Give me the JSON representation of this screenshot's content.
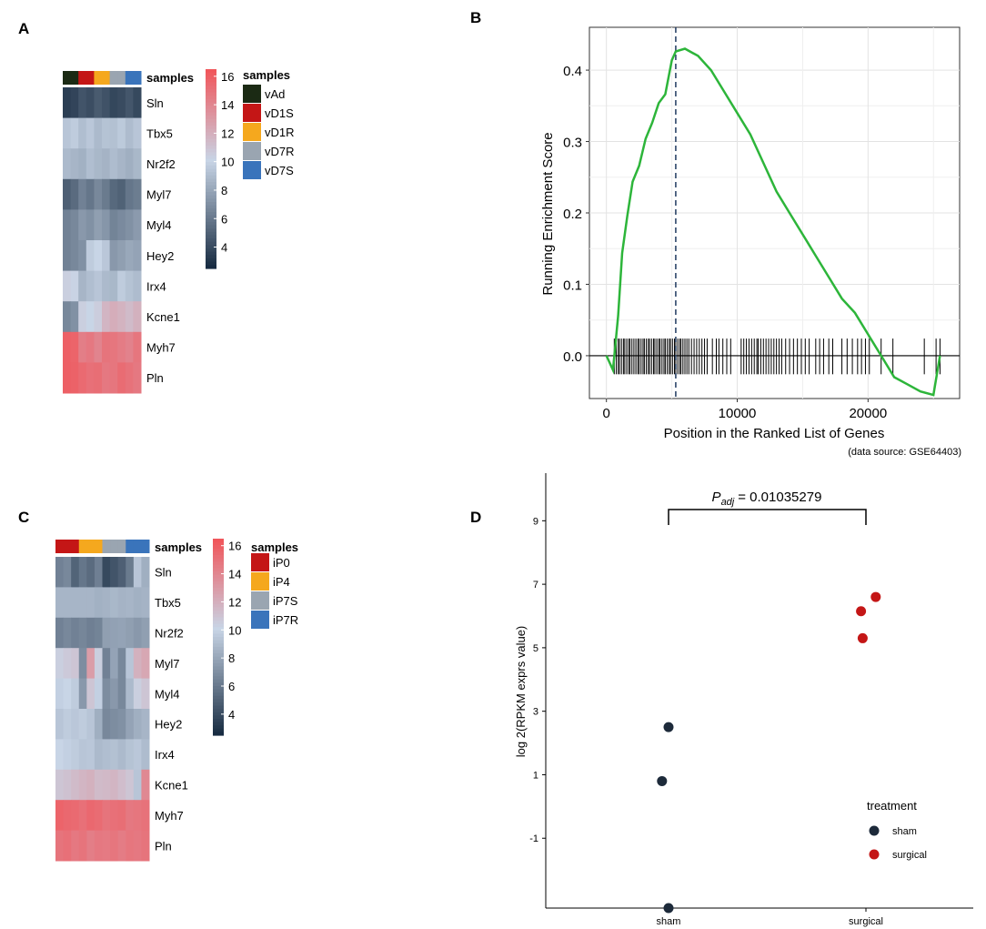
{
  "panels": {
    "A": {
      "label": "A",
      "type": "heatmap",
      "annotation_title": "samples",
      "legend_title": "samples",
      "genes": [
        "Sln",
        "Tbx5",
        "Nr2f2",
        "Myl7",
        "Myl4",
        "Hey2",
        "Irx4",
        "Kcne1",
        "Myh7",
        "Pln"
      ],
      "samples": [
        {
          "name": "vAd",
          "color": "#1b2a14"
        },
        {
          "name": "vD1S",
          "color": "#c41616"
        },
        {
          "name": "vD1R",
          "color": "#f5a81e"
        },
        {
          "name": "vD7R",
          "color": "#9aa5b1"
        },
        {
          "name": "vD7S",
          "color": "#3a74bb"
        }
      ],
      "column_groups": [
        "vAd",
        "vAd",
        "vD1S",
        "vD1S",
        "vD1R",
        "vD1R",
        "vD7R",
        "vD7R",
        "vD7S",
        "vD7S"
      ],
      "values": [
        [
          3.5,
          3.8,
          4.5,
          4.2,
          4.8,
          4.4,
          3.9,
          4.1,
          4.6,
          4.0
        ],
        [
          9.5,
          9.8,
          9.2,
          9.6,
          9.0,
          9.4,
          9.3,
          9.7,
          9.1,
          9.5
        ],
        [
          9.0,
          8.8,
          8.6,
          9.2,
          8.9,
          8.7,
          9.1,
          8.8,
          8.5,
          8.9
        ],
        [
          5.0,
          5.5,
          6.5,
          6.0,
          6.8,
          6.2,
          5.4,
          5.1,
          6.0,
          6.3
        ],
        [
          6.5,
          6.8,
          7.5,
          7.2,
          7.8,
          7.4,
          6.6,
          6.9,
          7.2,
          7.6
        ],
        [
          6.5,
          6.8,
          7.2,
          9.8,
          10.2,
          9.6,
          7.5,
          7.8,
          8.2,
          8.0
        ],
        [
          10.5,
          10.3,
          8.8,
          9.2,
          9.5,
          9.0,
          8.9,
          9.8,
          9.4,
          9.1
        ],
        [
          6.8,
          7.2,
          10.5,
          10.2,
          10.6,
          11.8,
          12.2,
          11.9,
          11.5,
          12.0
        ],
        [
          16.0,
          15.8,
          14.5,
          14.8,
          14.2,
          15.0,
          14.9,
          14.6,
          14.3,
          14.9
        ],
        [
          16.0,
          15.9,
          15.5,
          15.2,
          15.3,
          14.8,
          14.9,
          15.4,
          15.1,
          14.8
        ]
      ],
      "scale_ticks": [
        4,
        6,
        8,
        10,
        12,
        14,
        16
      ],
      "scale_range": [
        2.5,
        16.5
      ]
    },
    "B": {
      "label": "B",
      "type": "gsea-line",
      "ylabel": "Running Enrichment Score",
      "xlabel": "Position in the Ranked List of Genes",
      "source": "(data source: GSE64403)",
      "x_ticks": [
        0,
        10000,
        20000
      ],
      "y_ticks": [
        "0.0",
        "0.1",
        "0.2",
        "0.3",
        "0.4"
      ],
      "ylim": [
        -0.06,
        0.46
      ],
      "xlim": [
        -1300,
        27000
      ],
      "peak_position": 5300,
      "line_color": "#2db53a",
      "curve": [
        [
          0,
          0.0
        ],
        [
          500,
          -0.02
        ],
        [
          900,
          0.06
        ],
        [
          1200,
          0.14
        ],
        [
          1600,
          0.2
        ],
        [
          2000,
          0.24
        ],
        [
          2500,
          0.27
        ],
        [
          3000,
          0.3
        ],
        [
          3500,
          0.33
        ],
        [
          4000,
          0.35
        ],
        [
          4500,
          0.37
        ],
        [
          5000,
          0.41
        ],
        [
          5300,
          0.43
        ],
        [
          6000,
          0.43
        ],
        [
          6500,
          0.425
        ],
        [
          7000,
          0.42
        ],
        [
          8000,
          0.4
        ],
        [
          9000,
          0.37
        ],
        [
          10000,
          0.34
        ],
        [
          11000,
          0.31
        ],
        [
          12000,
          0.27
        ],
        [
          13000,
          0.23
        ],
        [
          14000,
          0.2
        ],
        [
          15000,
          0.17
        ],
        [
          16000,
          0.14
        ],
        [
          17000,
          0.11
        ],
        [
          18000,
          0.08
        ],
        [
          19000,
          0.06
        ],
        [
          20000,
          0.03
        ],
        [
          21000,
          0.0
        ],
        [
          22000,
          -0.03
        ],
        [
          23000,
          -0.04
        ],
        [
          24000,
          -0.05
        ],
        [
          25000,
          -0.055
        ],
        [
          25500,
          0.0
        ]
      ],
      "hits": [
        600,
        750,
        900,
        1000,
        1150,
        1300,
        1400,
        1550,
        1700,
        1800,
        1950,
        2100,
        2250,
        2400,
        2500,
        2650,
        2800,
        2900,
        3050,
        3200,
        3300,
        3450,
        3600,
        3700,
        3850,
        4000,
        4100,
        4250,
        4400,
        4500,
        4650,
        4800,
        4900,
        5050,
        5200,
        5300,
        5450,
        5600,
        5700,
        5850,
        6000,
        6150,
        6300,
        6500,
        6700,
        6900,
        7100,
        7300,
        7500,
        7700,
        8100,
        8400,
        8600,
        8900,
        9200,
        9500,
        10300,
        10500,
        10700,
        10900,
        11100,
        11300,
        11500,
        11600,
        11800,
        12000,
        12200,
        12400,
        12600,
        12800,
        13000,
        13200,
        13400,
        13700,
        14000,
        14300,
        14600,
        14900,
        15200,
        15500,
        16000,
        16300,
        16600,
        17000,
        17300,
        18000,
        18400,
        18800,
        19200,
        19500,
        19800,
        20100,
        21000,
        21900,
        24300,
        25200,
        25500
      ]
    },
    "C": {
      "label": "C",
      "type": "heatmap",
      "annotation_title": "samples",
      "legend_title": "samples",
      "genes": [
        "Sln",
        "Tbx5",
        "Nr2f2",
        "Myl7",
        "Myl4",
        "Hey2",
        "Irx4",
        "Kcne1",
        "Myh7",
        "Pln"
      ],
      "samples": [
        {
          "name": "iP0",
          "color": "#c41616"
        },
        {
          "name": "iP4",
          "color": "#f5a81e"
        },
        {
          "name": "iP7S",
          "color": "#9aa5b1"
        },
        {
          "name": "iP7R",
          "color": "#3a74bb"
        }
      ],
      "column_groups": [
        "iP0",
        "iP0",
        "iP0",
        "iP4",
        "iP4",
        "iP4",
        "iP7S",
        "iP7S",
        "iP7S",
        "iP7R",
        "iP7R",
        "iP7R"
      ],
      "values": [
        [
          6.5,
          6.8,
          5.2,
          6.0,
          5.5,
          6.4,
          4.0,
          4.5,
          5.0,
          6.2,
          9.5,
          8.5
        ],
        [
          8.8,
          8.8,
          8.8,
          8.8,
          8.8,
          8.6,
          8.7,
          8.9,
          8.7,
          8.8,
          8.6,
          8.7
        ],
        [
          6.5,
          6.8,
          6.5,
          6.7,
          6.4,
          6.6,
          7.8,
          7.9,
          8.0,
          7.8,
          7.5,
          7.8
        ],
        [
          10.5,
          10.8,
          11.0,
          7.0,
          13.0,
          10.5,
          6.5,
          8.0,
          6.8,
          9.5,
          12.0,
          12.5
        ],
        [
          10.0,
          10.2,
          9.8,
          7.5,
          11.0,
          10.0,
          7.0,
          7.5,
          6.8,
          9.0,
          10.5,
          11.0
        ],
        [
          9.5,
          9.8,
          9.6,
          9.8,
          9.5,
          8.5,
          6.8,
          7.0,
          7.2,
          8.0,
          8.5,
          8.8
        ],
        [
          10.2,
          10.0,
          9.8,
          9.5,
          9.6,
          9.0,
          9.2,
          9.3,
          9.0,
          9.4,
          9.6,
          9.1
        ],
        [
          11.0,
          11.2,
          11.5,
          11.8,
          12.0,
          11.5,
          11.6,
          11.8,
          11.4,
          11.0,
          9.5,
          14.0
        ],
        [
          15.8,
          15.6,
          15.5,
          15.2,
          15.6,
          15.4,
          15.0,
          15.2,
          15.3,
          14.8,
          14.9,
          15.1
        ],
        [
          15.0,
          15.2,
          14.8,
          15.0,
          14.5,
          14.8,
          14.7,
          14.9,
          14.6,
          14.9,
          14.8,
          15.0
        ]
      ],
      "scale_ticks": [
        4,
        6,
        8,
        10,
        12,
        14,
        16
      ],
      "scale_range": [
        2.5,
        16.5
      ]
    },
    "D": {
      "label": "D",
      "type": "scatter",
      "ylabel": "log 2(RPKM exprs value)",
      "categories": [
        "sham",
        "surgical"
      ],
      "y_ticks": [
        -1,
        1,
        3,
        5,
        7,
        9
      ],
      "ylim": [
        -3.2,
        10.5
      ],
      "p_label": "P",
      "p_subscript": "adj",
      "p_value": "= 0.01035279",
      "legend_title": "treatment",
      "series": [
        {
          "name": "sham",
          "color": "#1d2a3a",
          "points": [
            [
              0.0,
              2.5
            ],
            [
              -0.04,
              0.8
            ],
            [
              0.0,
              -3.2
            ]
          ]
        },
        {
          "name": "surgical",
          "color": "#c41616",
          "points": [
            [
              -0.03,
              6.15
            ],
            [
              0.06,
              6.6
            ],
            [
              -0.02,
              5.3
            ]
          ]
        }
      ]
    }
  },
  "colors": {
    "heat_low": "#13273d",
    "heat_mid": "#c8d5e6",
    "heat_high": "#f0565b"
  }
}
